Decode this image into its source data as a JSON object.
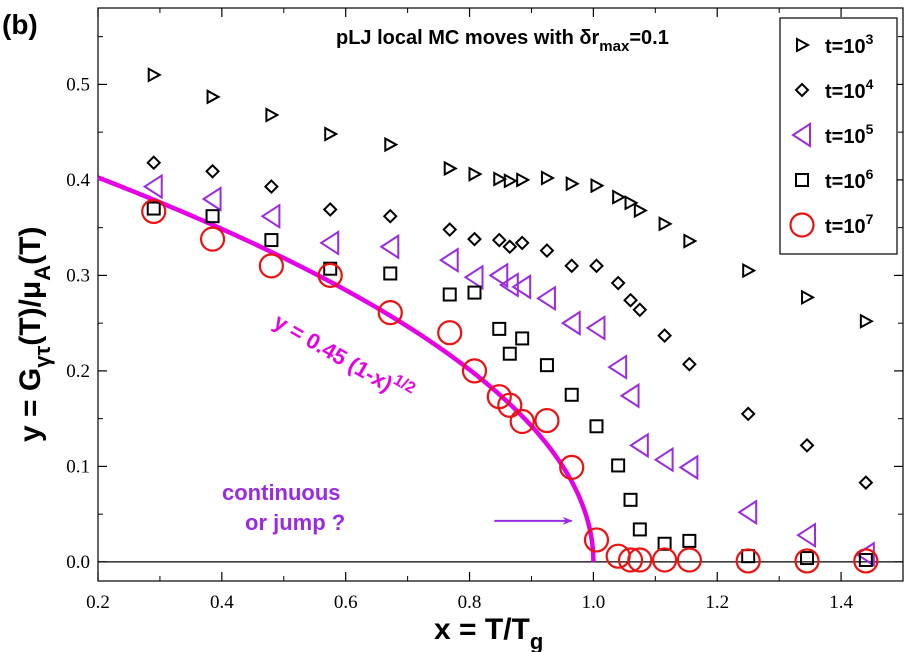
{
  "chart_data": {
    "type": "scatter",
    "panel_label": "(b)",
    "title": {
      "main": "pLJ local MC moves with δr",
      "sub": "max",
      "tail": "=0.1"
    },
    "xlabel": {
      "main": "x = T/T",
      "sub": "g"
    },
    "ylabel": {
      "p1": "y = G",
      "sub1": "γτ",
      "p2": "(T)/μ",
      "sub2": "A",
      "p3": "(T)"
    },
    "xlim": [
      0.2,
      1.5
    ],
    "ylim": [
      -0.02,
      0.58
    ],
    "x_ticks": [
      0.2,
      0.4,
      0.6,
      0.8,
      1.0,
      1.2,
      1.4
    ],
    "x_tick_labels": [
      "0.2",
      "0.4",
      "0.6",
      "0.8",
      "1.0",
      "1.2",
      "1.4"
    ],
    "y_ticks": [
      0.0,
      0.1,
      0.2,
      0.3,
      0.4,
      0.5
    ],
    "y_tick_labels": [
      "0.0",
      "0.1",
      "0.2",
      "0.3",
      "0.4",
      "0.5"
    ],
    "grid": false,
    "legend_position": "top-right",
    "series": [
      {
        "name": "t=10^3",
        "label_main": "t=10",
        "label_exp": "3",
        "marker": "triangle-right",
        "color": "#000000",
        "points": [
          [
            0.29,
            0.51
          ],
          [
            0.385,
            0.487
          ],
          [
            0.48,
            0.468
          ],
          [
            0.575,
            0.448
          ],
          [
            0.672,
            0.437
          ],
          [
            0.768,
            0.412
          ],
          [
            0.808,
            0.406
          ],
          [
            0.848,
            0.401
          ],
          [
            0.865,
            0.399
          ],
          [
            0.885,
            0.4
          ],
          [
            0.925,
            0.402
          ],
          [
            0.965,
            0.396
          ],
          [
            1.005,
            0.394
          ],
          [
            1.04,
            0.382
          ],
          [
            1.06,
            0.376
          ],
          [
            1.075,
            0.368
          ],
          [
            1.115,
            0.354
          ],
          [
            1.155,
            0.336
          ],
          [
            1.25,
            0.305
          ],
          [
            1.345,
            0.277
          ],
          [
            1.44,
            0.252
          ]
        ]
      },
      {
        "name": "t=10^4",
        "label_main": "t=10",
        "label_exp": "4",
        "marker": "diamond",
        "color": "#000000",
        "points": [
          [
            0.29,
            0.418
          ],
          [
            0.385,
            0.409
          ],
          [
            0.48,
            0.393
          ],
          [
            0.575,
            0.369
          ],
          [
            0.672,
            0.362
          ],
          [
            0.768,
            0.348
          ],
          [
            0.808,
            0.338
          ],
          [
            0.848,
            0.337
          ],
          [
            0.865,
            0.33
          ],
          [
            0.885,
            0.334
          ],
          [
            0.925,
            0.326
          ],
          [
            0.965,
            0.31
          ],
          [
            1.005,
            0.31
          ],
          [
            1.04,
            0.292
          ],
          [
            1.06,
            0.274
          ],
          [
            1.075,
            0.264
          ],
          [
            1.115,
            0.237
          ],
          [
            1.155,
            0.207
          ],
          [
            1.25,
            0.155
          ],
          [
            1.345,
            0.122
          ],
          [
            1.44,
            0.083
          ]
        ]
      },
      {
        "name": "t=10^5",
        "label_main": "t=10",
        "label_exp": "5",
        "marker": "triangle-left",
        "color": "#9a2be2",
        "points": [
          [
            0.29,
            0.393
          ],
          [
            0.385,
            0.38
          ],
          [
            0.48,
            0.362
          ],
          [
            0.575,
            0.334
          ],
          [
            0.672,
            0.33
          ],
          [
            0.768,
            0.316
          ],
          [
            0.808,
            0.298
          ],
          [
            0.848,
            0.3
          ],
          [
            0.865,
            0.29
          ],
          [
            0.885,
            0.288
          ],
          [
            0.925,
            0.276
          ],
          [
            0.965,
            0.25
          ],
          [
            1.005,
            0.245
          ],
          [
            1.04,
            0.204
          ],
          [
            1.06,
            0.174
          ],
          [
            1.075,
            0.122
          ],
          [
            1.115,
            0.107
          ],
          [
            1.155,
            0.099
          ],
          [
            1.25,
            0.052
          ],
          [
            1.345,
            0.028
          ],
          [
            1.44,
            0.008
          ]
        ]
      },
      {
        "name": "t=10^6",
        "label_main": "t=10",
        "label_exp": "6",
        "marker": "square",
        "color": "#000000",
        "points": [
          [
            0.29,
            0.37
          ],
          [
            0.385,
            0.362
          ],
          [
            0.48,
            0.337
          ],
          [
            0.575,
            0.307
          ],
          [
            0.672,
            0.302
          ],
          [
            0.768,
            0.28
          ],
          [
            0.808,
            0.282
          ],
          [
            0.848,
            0.244
          ],
          [
            0.865,
            0.218
          ],
          [
            0.885,
            0.234
          ],
          [
            0.925,
            0.206
          ],
          [
            0.965,
            0.175
          ],
          [
            1.005,
            0.142
          ],
          [
            1.04,
            0.101
          ],
          [
            1.06,
            0.065
          ],
          [
            1.075,
            0.034
          ],
          [
            1.115,
            0.019
          ],
          [
            1.155,
            0.022
          ],
          [
            1.25,
            0.006
          ],
          [
            1.345,
            0.004
          ],
          [
            1.44,
            0.002
          ]
        ]
      },
      {
        "name": "t=10^7",
        "label_main": "t=10",
        "label_exp": "7",
        "marker": "circle",
        "color": "#ee1111",
        "points": [
          [
            0.29,
            0.367
          ],
          [
            0.385,
            0.338
          ],
          [
            0.48,
            0.31
          ],
          [
            0.575,
            0.3
          ],
          [
            0.672,
            0.261
          ],
          [
            0.768,
            0.24
          ],
          [
            0.808,
            0.2
          ],
          [
            0.848,
            0.173
          ],
          [
            0.865,
            0.164
          ],
          [
            0.885,
            0.147
          ],
          [
            0.925,
            0.148
          ],
          [
            0.965,
            0.099
          ],
          [
            1.005,
            0.023
          ],
          [
            1.04,
            0.006
          ],
          [
            1.06,
            0.002
          ],
          [
            1.075,
            0.002
          ],
          [
            1.115,
            0.002
          ],
          [
            1.155,
            0.002
          ],
          [
            1.25,
            0.001
          ],
          [
            1.345,
            0.001
          ],
          [
            1.44,
            0.001
          ]
        ]
      }
    ],
    "fit_curve": {
      "color": "#e600e6",
      "amplitude": 0.45,
      "exponent": 0.5,
      "x_range": [
        0.2,
        1.0
      ],
      "label_main": "y = 0.45 (1-x)",
      "label_exp": "1/2"
    },
    "annotation": {
      "line1": "continuous",
      "line2": "or jump ?",
      "color": "#9a2be2",
      "arrow_from": [
        0.84,
        0.043
      ],
      "arrow_to": [
        0.965,
        0.043
      ]
    }
  }
}
